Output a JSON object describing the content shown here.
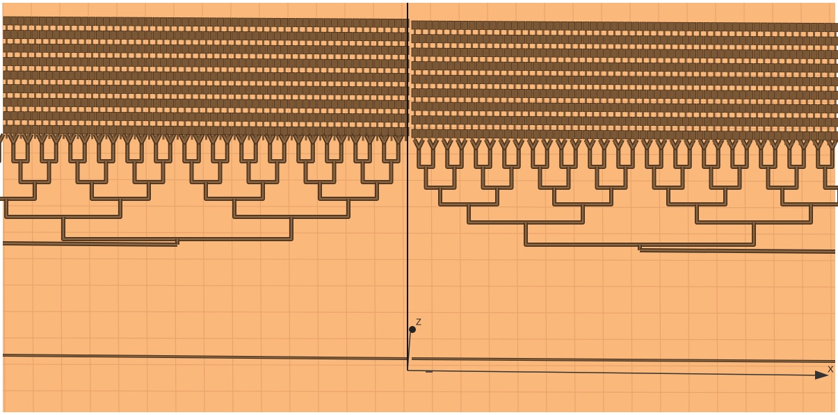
{
  "axes": {
    "z_label": "Z",
    "x_label": "X"
  }
}
